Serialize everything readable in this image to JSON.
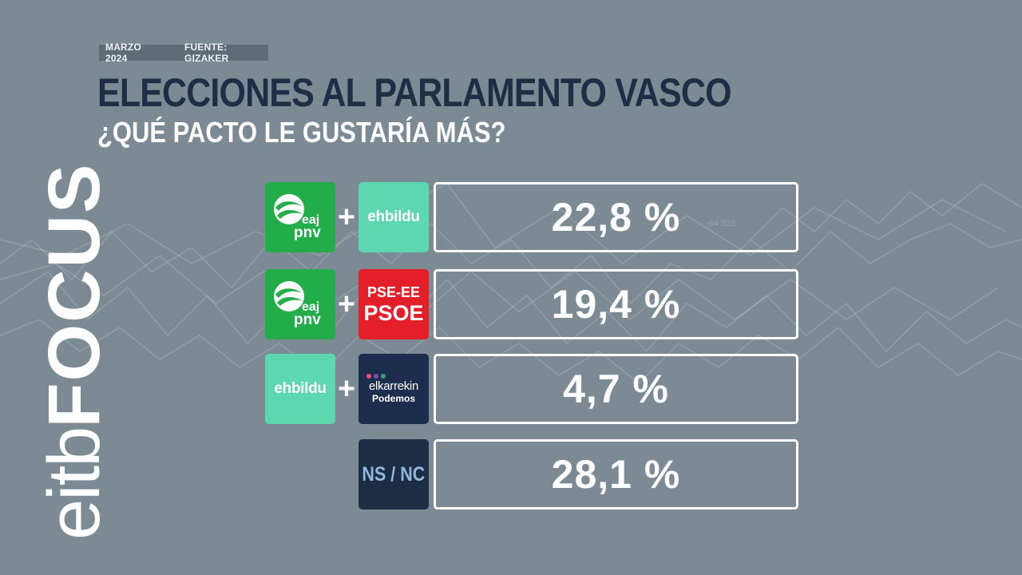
{
  "meta": {
    "date": "MARZO 2024",
    "source": "FUENTE: GIZAKER"
  },
  "title": "ELECCIONES AL PARLAMENTO VASCO",
  "subtitle": "¿QUÉ PACTO LE GUSTARÍA MÁS?",
  "brand": {
    "part1": "eitb",
    "part2": "FOCUS"
  },
  "background": {
    "labels": [
      "-64.523",
      "-64.523"
    ]
  },
  "parties": {
    "pnv": {
      "line1": "eaj",
      "line2": "pnv",
      "color": "#22ad4a"
    },
    "bildu": {
      "name": "ehbildu",
      "color": "#5dd7b0"
    },
    "psoe": {
      "line1": "PSE-EE",
      "line2": "PSOE",
      "color": "#e3202a"
    },
    "podemos": {
      "line1": "elkarrekin",
      "line2": "Podemos",
      "color": "#1d2d4d"
    },
    "nsnc": {
      "name": "NS / NC",
      "color": "#1d2d44"
    }
  },
  "rows": [
    {
      "plus": "+",
      "display": "22,8 %"
    },
    {
      "plus": "+",
      "display": "19,4 %"
    },
    {
      "plus": "+",
      "display": "4,7 %"
    },
    {
      "plus": "",
      "display": "28,1 %"
    }
  ],
  "chart_data": {
    "type": "table",
    "categories": [
      "eaj pnv + ehbildu",
      "eaj pnv + PSE-EE PSOE",
      "ehbildu + elkarrekin Podemos",
      "NS / NC"
    ],
    "values": [
      22.8,
      19.4,
      4.7,
      28.1
    ],
    "title": "ELECCIONES AL PARLAMENTO VASCO",
    "subtitle": "¿QUÉ PACTO LE GUSTARÍA MÁS?"
  }
}
